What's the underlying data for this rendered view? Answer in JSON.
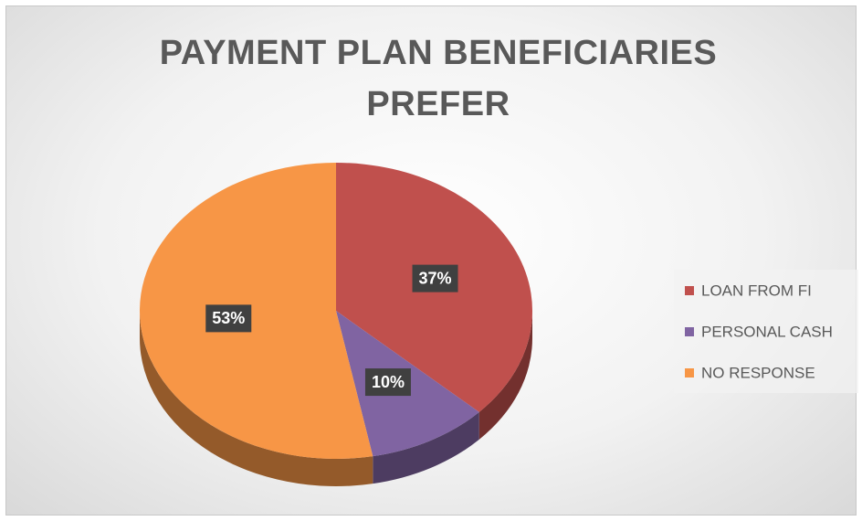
{
  "chart_data": {
    "type": "pie",
    "title": "PAYMENT PLAN BENEFICIARIES PREFER",
    "categories": [
      "LOAN FROM FI",
      "PERSONAL CASH",
      "NO RESPONSE"
    ],
    "values": [
      37,
      10,
      53
    ],
    "value_labels": [
      "37%",
      "10%",
      "53%"
    ],
    "colors": [
      "#c0504d",
      "#8064a2",
      "#f79646"
    ],
    "legend": "right"
  }
}
